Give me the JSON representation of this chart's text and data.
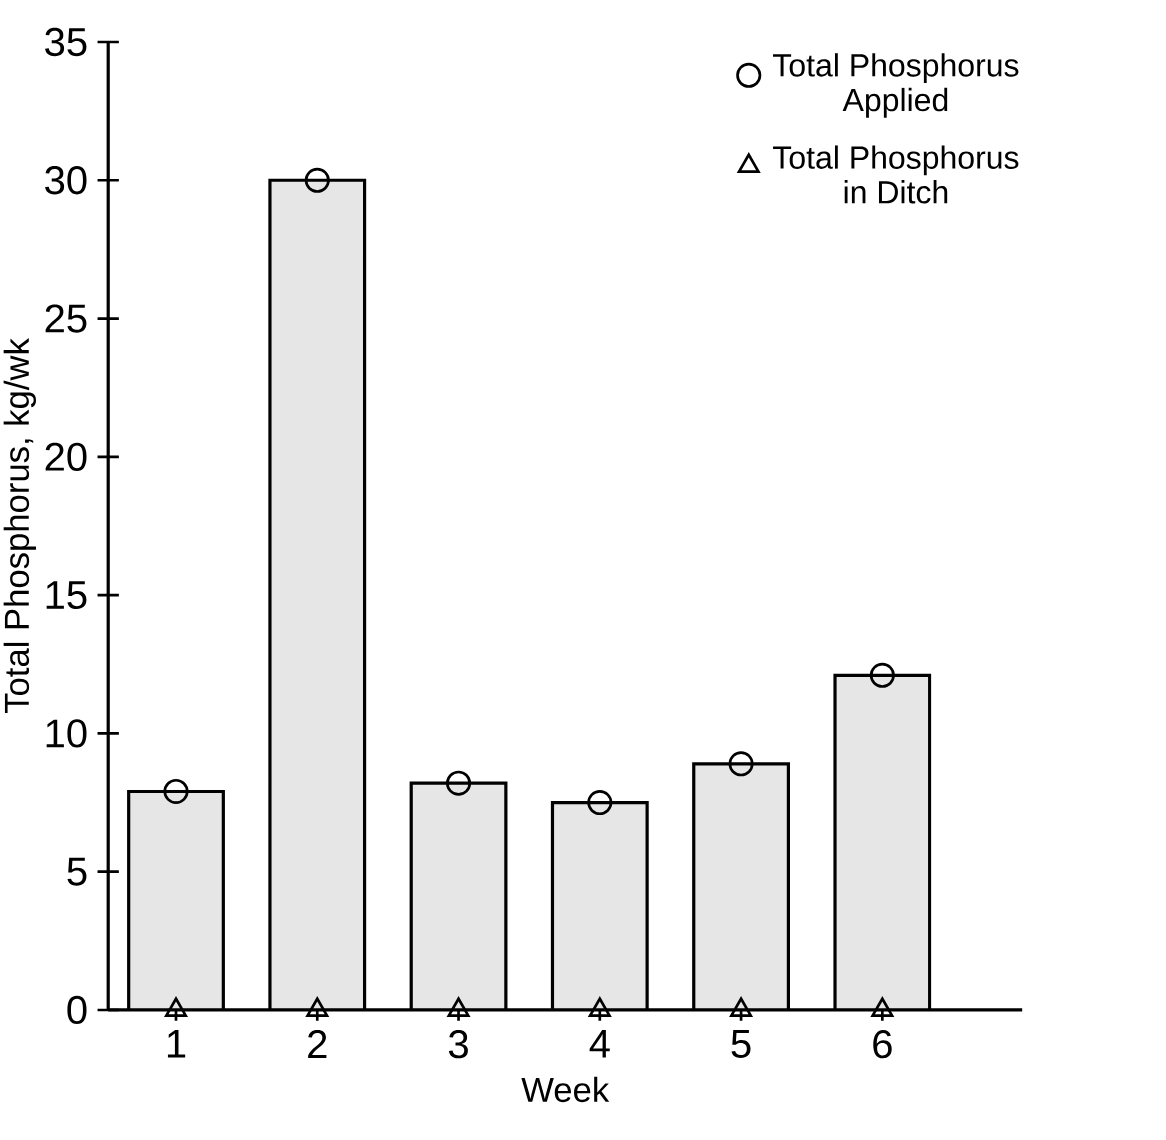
{
  "chart_data": {
    "type": "bar",
    "xlabel": "Week",
    "ylabel": "Total Phosphorus, kg/wk",
    "categories": [
      "1",
      "2",
      "3",
      "4",
      "5",
      "6"
    ],
    "series": [
      {
        "color": "#e6e6e6",
        "values": [
          7.9,
          30.0,
          8.2,
          7.5,
          8.9,
          12.1
        ]
      },
      {
        "type": "scatter",
        "name": "Total Phosphorus Applied",
        "marker": "circle",
        "color": "#000000",
        "values": [
          7.9,
          30.0,
          8.2,
          7.5,
          8.9,
          12.1
        ]
      },
      {
        "type": "scatter",
        "name": "Total Phosphorus in Ditch",
        "marker": "triangle",
        "color": "#000000",
        "values": [
          0,
          0,
          0,
          0,
          0,
          0
        ]
      }
    ],
    "ylim": [
      0,
      35
    ],
    "yticks": [
      0,
      5,
      10,
      15,
      20,
      25,
      30,
      35
    ],
    "legend": "top right"
  }
}
